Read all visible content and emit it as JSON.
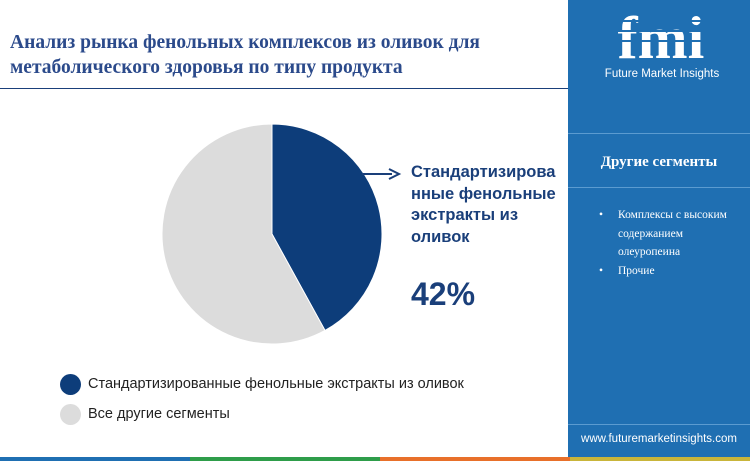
{
  "header": {
    "title": "Анализ рынка фенольных комплексов из оливок для метаболического здоровья по типу продукта"
  },
  "brand": {
    "logo_text": "fmi",
    "name": "Future Market Insights",
    "website": "www.futuremarketinsights.com"
  },
  "sidebar": {
    "heading": "Другие сегменты",
    "items": [
      {
        "label": "Комплексы с высоким содержанием олеуропеина"
      },
      {
        "label": "Прочие"
      }
    ]
  },
  "callout": {
    "label": "Стандартизированные фенольные экстракты из оливок",
    "label_display": "Стандартизирова нные фенольные экстракты из оливок",
    "value": "42%"
  },
  "chart_data": {
    "type": "pie",
    "title": "Анализ рынка фенольных комплексов из оливок для метаболического здоровья по типу продукта",
    "slices": [
      {
        "label": "Стандартизированные фенольные экстракты из оливок",
        "value": 42,
        "color": "#0d3d7a"
      },
      {
        "label": "Все другие сегменты",
        "value": 58,
        "color": "#dcdcdc"
      }
    ],
    "legend_placement": "bottom-left"
  },
  "colors": {
    "primary": "#0d3d7a",
    "other": "#dcdcdc",
    "sidebar": "#1f6fb2",
    "strip": [
      "#1f6fb2",
      "#2e9d4a",
      "#e8702a",
      "#c9b53a"
    ]
  }
}
